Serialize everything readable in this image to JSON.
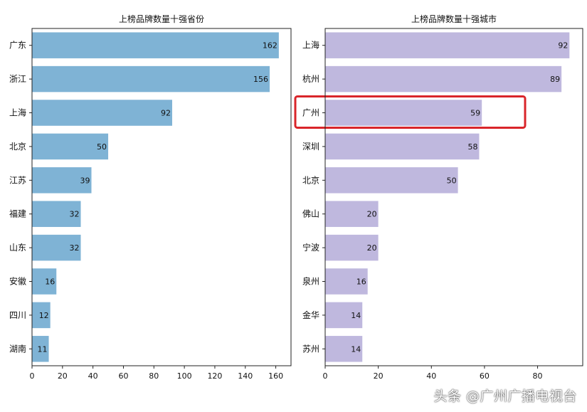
{
  "chart_data": [
    {
      "type": "bar",
      "orientation": "horizontal",
      "title": "上榜品牌数量十强省份",
      "categories": [
        "广东",
        "浙江",
        "上海",
        "北京",
        "江苏",
        "福建",
        "山东",
        "安徽",
        "四川",
        "湖南"
      ],
      "values": [
        162,
        156,
        92,
        50,
        39,
        32,
        32,
        16,
        12,
        11
      ],
      "xlim": [
        0,
        170
      ],
      "xticks": [
        0,
        20,
        40,
        60,
        80,
        100,
        120,
        140,
        160
      ],
      "color": "#7fb3d5",
      "grid": false
    },
    {
      "type": "bar",
      "orientation": "horizontal",
      "title": "上榜品牌数量十强城市",
      "categories": [
        "上海",
        "杭州",
        "广州",
        "深圳",
        "北京",
        "佛山",
        "宁波",
        "泉州",
        "金华",
        "苏州"
      ],
      "values": [
        92,
        89,
        59,
        58,
        50,
        20,
        20,
        16,
        14,
        14
      ],
      "xlim": [
        0,
        97
      ],
      "xticks": [
        0,
        20,
        40,
        60,
        80
      ],
      "color": "#bfb8de",
      "highlight": {
        "category": "广州",
        "color": "#d9252a"
      },
      "grid": false
    }
  ],
  "watermark": "头条 @广州广播电视台"
}
